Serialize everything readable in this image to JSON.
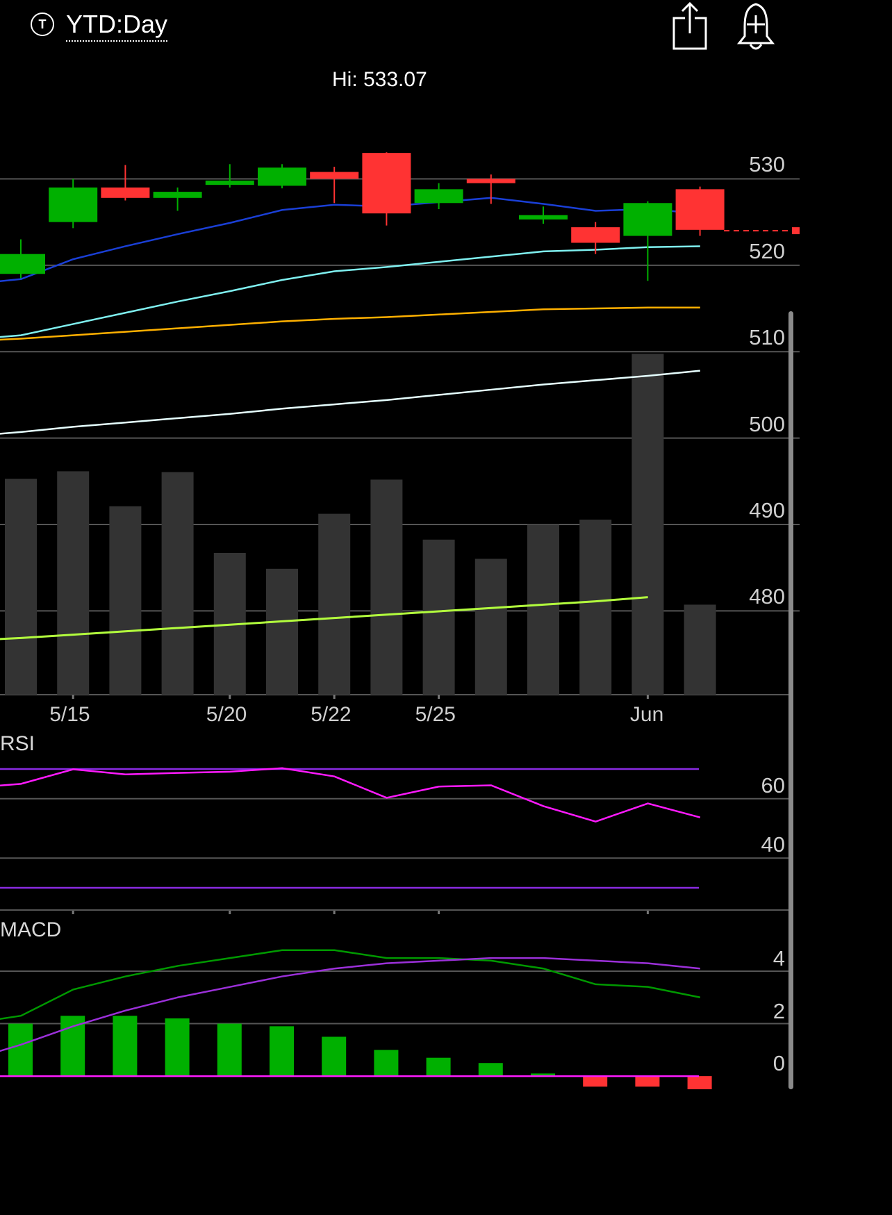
{
  "header": {
    "symbol_icon": "T",
    "range_label": "YTD:Day",
    "share_icon": "share-icon",
    "alert_icon": "bell-plus-icon"
  },
  "chart_data": [
    {
      "type": "candlestick",
      "hi_label": "Hi: 533.07",
      "y_ticks": [
        530,
        520,
        510,
        500,
        490,
        480
      ],
      "ylim": [
        470.3,
        538.8
      ],
      "grid": true,
      "last_price_marker": 524,
      "colors": {
        "up": "#00b000",
        "down": "#ff3333",
        "ma_short": "#1a3fd6",
        "ma_mid": "#7ff0f0",
        "ma_long": "#ffb000",
        "ma_200": "#e6ffff",
        "grid": "#555555"
      },
      "candles": [
        {
          "i": 0,
          "o": 519.0,
          "c": 521.3,
          "h": 523.0,
          "l": 518.5
        },
        {
          "i": 1,
          "o": 525.0,
          "c": 529.0,
          "h": 530.0,
          "l": 524.3
        },
        {
          "i": 2,
          "o": 529.0,
          "c": 527.8,
          "h": 531.6,
          "l": 527.5
        },
        {
          "i": 3,
          "o": 527.8,
          "c": 528.5,
          "h": 529.0,
          "l": 526.3
        },
        {
          "i": 4,
          "o": 529.3,
          "c": 529.8,
          "h": 531.7,
          "l": 529.0
        },
        {
          "i": 5,
          "o": 529.2,
          "c": 531.3,
          "h": 531.7,
          "l": 528.9
        },
        {
          "i": 6,
          "o": 530.8,
          "c": 530.0,
          "h": 531.4,
          "l": 527.2
        },
        {
          "i": 7,
          "o": 533.0,
          "c": 526.0,
          "h": 533.07,
          "l": 524.6
        },
        {
          "i": 8,
          "o": 527.2,
          "c": 528.8,
          "h": 529.5,
          "l": 526.5
        },
        {
          "i": 9,
          "o": 530.0,
          "c": 529.5,
          "h": 530.5,
          "l": 527.1
        },
        {
          "i": 10,
          "o": 525.3,
          "c": 525.8,
          "h": 526.8,
          "l": 524.8
        },
        {
          "i": 11,
          "o": 524.4,
          "c": 522.6,
          "h": 525.0,
          "l": 521.3
        },
        {
          "i": 12,
          "o": 523.4,
          "c": 527.2,
          "h": 527.4,
          "l": 518.2
        },
        {
          "i": 13,
          "o": 528.8,
          "c": 524.1,
          "h": 529.1,
          "l": 523.4
        }
      ],
      "ma_short": [
        517.8,
        518.4,
        520.7,
        522.2,
        523.6,
        524.9,
        526.4,
        527.0,
        526.8,
        527.3,
        527.8,
        527.1,
        526.3,
        526.5,
        526.0
      ],
      "ma_mid": [
        511.4,
        511.9,
        513.2,
        514.5,
        515.8,
        517.0,
        518.3,
        519.3,
        519.8,
        520.4,
        521.0,
        521.6,
        521.8,
        522.1,
        522.2
      ],
      "ma_long": [
        511.2,
        511.5,
        511.9,
        512.3,
        512.7,
        513.1,
        513.5,
        513.8,
        514.0,
        514.3,
        514.6,
        514.9,
        515.0,
        515.1,
        515.1
      ],
      "ma_200": [
        500.2,
        500.7,
        501.3,
        501.8,
        502.3,
        502.8,
        503.4,
        503.9,
        504.4,
        505.0,
        505.6,
        506.2,
        506.7,
        507.2,
        507.8
      ]
    },
    {
      "type": "bar",
      "series_role": "volume",
      "values": [
        259,
        268,
        226,
        267,
        170,
        151,
        217,
        258,
        186,
        163,
        204,
        210,
        409,
        108
      ],
      "avg_line": [
        65,
        68,
        72,
        76,
        80,
        84,
        88,
        92,
        96,
        100,
        104,
        108,
        112,
        117
      ],
      "colors": {
        "bar": "#333333",
        "avg_line": "#b3ff3d"
      }
    },
    {
      "type": "line",
      "title": "RSI",
      "x_ticks": [
        "5/15",
        "5/20",
        "5/22",
        "5/25",
        "Jun"
      ],
      "x_tick_index": [
        1,
        4,
        6,
        8,
        12
      ],
      "y_ticks": [
        60,
        40
      ],
      "ylim": [
        22.5,
        81
      ],
      "upper_band": 70,
      "lower_band": 30,
      "values": [
        63.6,
        65.0,
        69.9,
        68.2,
        68.7,
        69.1,
        70.3,
        67.5,
        60.3,
        64.1,
        64.5,
        57.5,
        52.3,
        58.4,
        53.7
      ],
      "colors": {
        "line": "#ff1aff",
        "band": "#8a2be2"
      }
    },
    {
      "type": "bar",
      "title": "MACD",
      "y_ticks": [
        4,
        2,
        0
      ],
      "ylim": [
        -0.5,
        5.8
      ],
      "macd": [
        2.0,
        2.3,
        3.3,
        3.8,
        4.2,
        4.5,
        4.8,
        4.8,
        4.5,
        4.5,
        4.4,
        4.1,
        3.5,
        3.4,
        3.0
      ],
      "signal": [
        0.6,
        1.2,
        1.9,
        2.5,
        3.0,
        3.4,
        3.8,
        4.1,
        4.3,
        4.4,
        4.5,
        4.5,
        4.4,
        4.3,
        4.1
      ],
      "histogram": [
        2.0,
        2.3,
        2.3,
        2.2,
        2.0,
        1.9,
        1.5,
        1.0,
        0.7,
        0.5,
        0.1,
        -0.4,
        -0.4,
        -0.7
      ],
      "colors": {
        "macd": "#009900",
        "signal": "#9b30d9",
        "hist_up": "#00b000",
        "hist_down": "#ff3333",
        "zero_line": "#ff1aff"
      }
    }
  ]
}
